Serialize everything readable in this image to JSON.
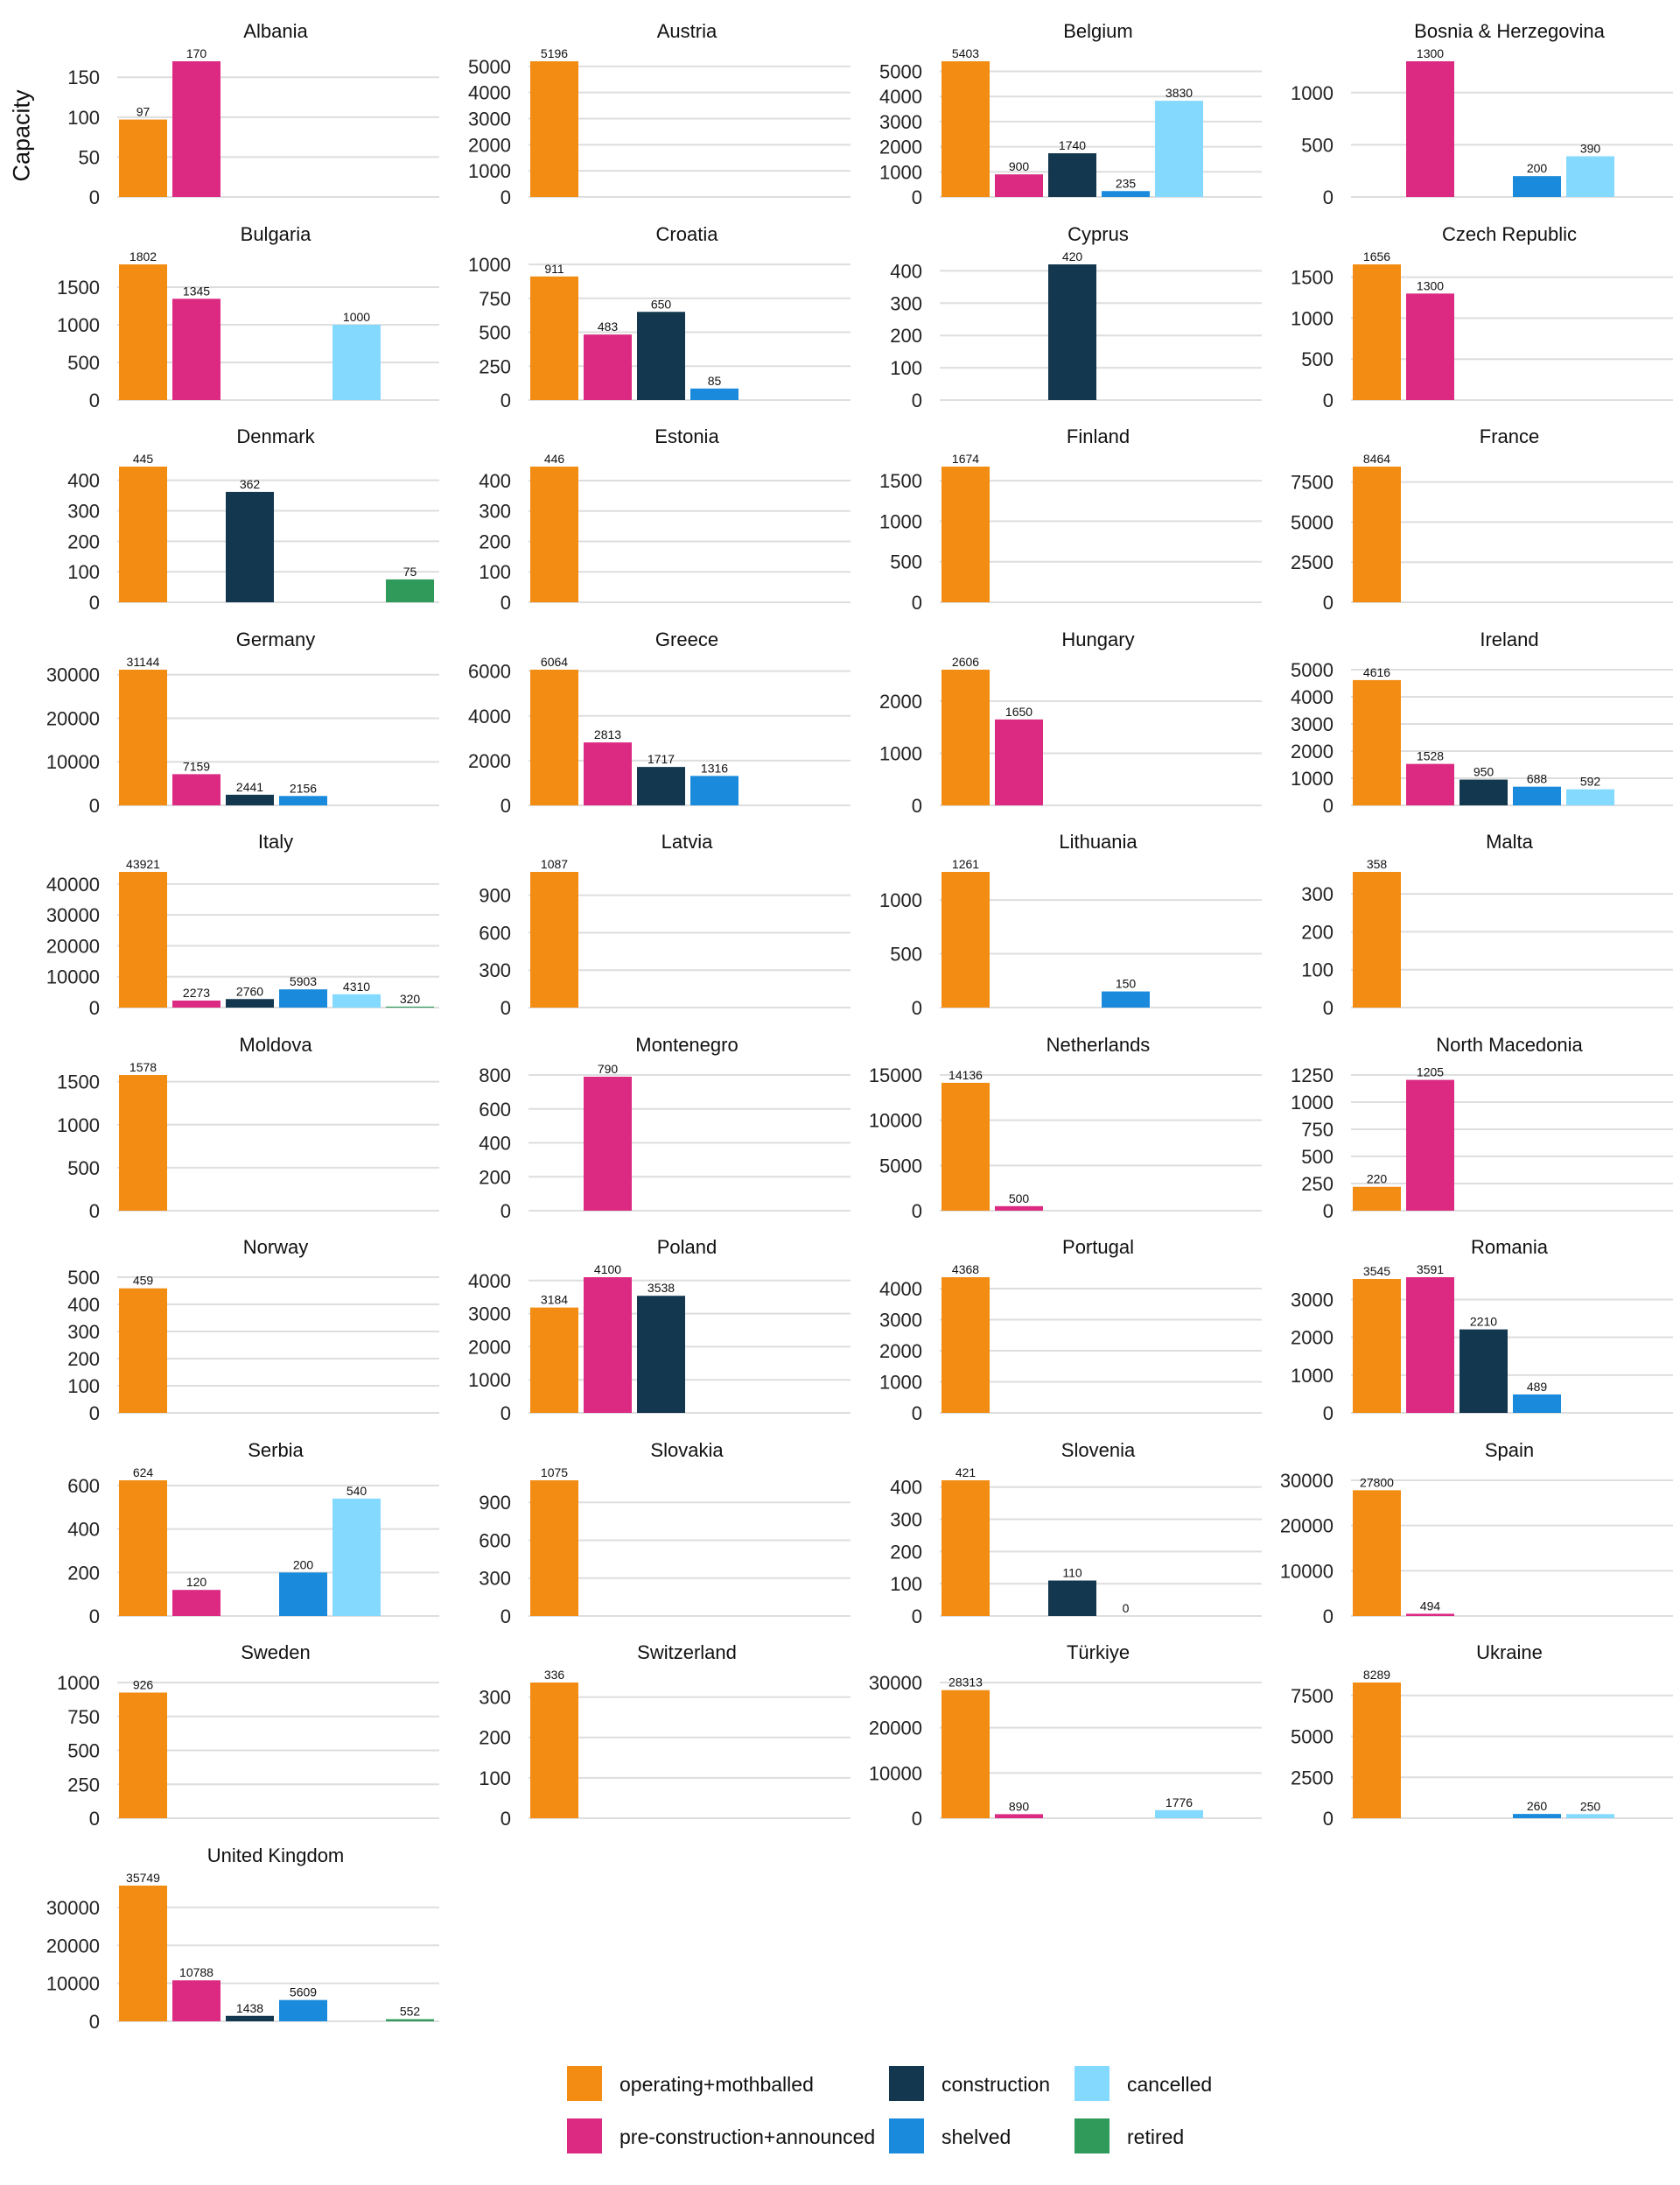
{
  "chart_data": {
    "type": "bar",
    "ylabel": "Capacity",
    "categories": [
      "operating+mothballed",
      "pre-construction+announced",
      "construction",
      "shelved",
      "cancelled",
      "retired"
    ],
    "colors": {
      "operating+mothballed": "#F28C12",
      "pre-construction+announced": "#DC2A82",
      "construction": "#12374F",
      "shelved": "#1A8BDC",
      "cancelled": "#84D9FF",
      "retired": "#2F9A59"
    },
    "legend": {
      "position": "bottom"
    },
    "grid": true,
    "panels": [
      {
        "title": "Albania",
        "yticks": [
          "0",
          "50",
          "100",
          "150"
        ],
        "yticks_values": [
          0,
          50,
          100,
          150
        ],
        "ylim": [
          0,
          170
        ],
        "values": {
          "operating+mothballed": 97,
          "pre-construction+announced": 170
        }
      },
      {
        "title": "Austria",
        "yticks": [
          "0",
          "1000",
          "2000",
          "3000",
          "4000",
          "5000"
        ],
        "yticks_values": [
          0,
          1000,
          2000,
          3000,
          4000,
          5000
        ],
        "ylim": [
          0,
          5196
        ],
        "values": {
          "operating+mothballed": 5196
        }
      },
      {
        "title": "Belgium",
        "yticks": [
          "0",
          "1000",
          "2000",
          "3000",
          "4000",
          "5000"
        ],
        "yticks_values": [
          0,
          1000,
          2000,
          3000,
          4000,
          5000
        ],
        "ylim": [
          0,
          5403
        ],
        "values": {
          "operating+mothballed": 5403,
          "pre-construction+announced": 900,
          "construction": 1740,
          "shelved": 235,
          "cancelled": 3830
        }
      },
      {
        "title": "Bosnia & Herzegovina",
        "yticks": [
          "0",
          "500",
          "1000"
        ],
        "yticks_values": [
          0,
          500,
          1000
        ],
        "ylim": [
          0,
          1300
        ],
        "values": {
          "pre-construction+announced": 1300,
          "shelved": 200,
          "cancelled": 390
        }
      },
      {
        "title": "Bulgaria",
        "yticks": [
          "0",
          "500",
          "1000",
          "1500"
        ],
        "yticks_values": [
          0,
          500,
          1000,
          1500
        ],
        "ylim": [
          0,
          1802
        ],
        "values": {
          "operating+mothballed": 1802,
          "pre-construction+announced": 1345,
          "cancelled": 1000
        }
      },
      {
        "title": "Croatia",
        "yticks": [
          "0",
          "250",
          "500",
          "750",
          "1000"
        ],
        "yticks_values": [
          0,
          250,
          500,
          750,
          1000
        ],
        "ylim": [
          0,
          911
        ],
        "values": {
          "operating+mothballed": 911,
          "pre-construction+announced": 483,
          "construction": 650,
          "shelved": 85
        }
      },
      {
        "title": "Cyprus",
        "yticks": [
          "0",
          "100",
          "200",
          "300",
          "400"
        ],
        "yticks_values": [
          0,
          100,
          200,
          300,
          400
        ],
        "ylim": [
          0,
          420
        ],
        "values": {
          "construction": 420
        }
      },
      {
        "title": "Czech Republic",
        "yticks": [
          "0",
          "500",
          "1000",
          "1500"
        ],
        "yticks_values": [
          0,
          500,
          1000,
          1500
        ],
        "ylim": [
          0,
          1656
        ],
        "values": {
          "operating+mothballed": 1656,
          "pre-construction+announced": 1300
        }
      },
      {
        "title": "Denmark",
        "yticks": [
          "0",
          "100",
          "200",
          "300",
          "400"
        ],
        "yticks_values": [
          0,
          100,
          200,
          300,
          400
        ],
        "ylim": [
          0,
          445
        ],
        "values": {
          "operating+mothballed": 445,
          "construction": 362,
          "retired": 75
        }
      },
      {
        "title": "Estonia",
        "yticks": [
          "0",
          "100",
          "200",
          "300",
          "400"
        ],
        "yticks_values": [
          0,
          100,
          200,
          300,
          400
        ],
        "ylim": [
          0,
          446
        ],
        "values": {
          "operating+mothballed": 446
        }
      },
      {
        "title": "Finland",
        "yticks": [
          "0",
          "500",
          "1000",
          "1500"
        ],
        "yticks_values": [
          0,
          500,
          1000,
          1500
        ],
        "ylim": [
          0,
          1674
        ],
        "values": {
          "operating+mothballed": 1674
        }
      },
      {
        "title": "France",
        "yticks": [
          "0",
          "2500",
          "5000",
          "7500"
        ],
        "yticks_values": [
          0,
          2500,
          5000,
          7500
        ],
        "ylim": [
          0,
          8464
        ],
        "values": {
          "operating+mothballed": 8464
        }
      },
      {
        "title": "Germany",
        "yticks": [
          "0",
          "10000",
          "20000",
          "30000"
        ],
        "yticks_values": [
          0,
          10000,
          20000,
          30000
        ],
        "ylim": [
          0,
          31144
        ],
        "values": {
          "operating+mothballed": 31144,
          "pre-construction+announced": 7159,
          "construction": 2441,
          "shelved": 2156
        }
      },
      {
        "title": "Greece",
        "yticks": [
          "0",
          "2000",
          "4000",
          "6000"
        ],
        "yticks_values": [
          0,
          2000,
          4000,
          6000
        ],
        "ylim": [
          0,
          6064
        ],
        "values": {
          "operating+mothballed": 6064,
          "pre-construction+announced": 2813,
          "construction": 1717,
          "shelved": 1316
        }
      },
      {
        "title": "Hungary",
        "yticks": [
          "0",
          "1000",
          "2000"
        ],
        "yticks_values": [
          0,
          1000,
          2000
        ],
        "ylim": [
          0,
          2606
        ],
        "values": {
          "operating+mothballed": 2606,
          "pre-construction+announced": 1650
        }
      },
      {
        "title": "Ireland",
        "yticks": [
          "0",
          "1000",
          "2000",
          "3000",
          "4000",
          "5000"
        ],
        "yticks_values": [
          0,
          1000,
          2000,
          3000,
          4000,
          5000
        ],
        "ylim": [
          0,
          4616
        ],
        "values": {
          "operating+mothballed": 4616,
          "pre-construction+announced": 1528,
          "construction": 950,
          "shelved": 688,
          "cancelled": 592
        }
      },
      {
        "title": "Italy",
        "yticks": [
          "0",
          "10000",
          "20000",
          "30000",
          "40000"
        ],
        "yticks_values": [
          0,
          10000,
          20000,
          30000,
          40000
        ],
        "ylim": [
          0,
          43921
        ],
        "values": {
          "operating+mothballed": 43921,
          "pre-construction+announced": 2273,
          "construction": 2760,
          "shelved": 5903,
          "cancelled": 4310,
          "retired": 320
        }
      },
      {
        "title": "Latvia",
        "yticks": [
          "0",
          "300",
          "600",
          "900"
        ],
        "yticks_values": [
          0,
          300,
          600,
          900
        ],
        "ylim": [
          0,
          1087
        ],
        "values": {
          "operating+mothballed": 1087
        }
      },
      {
        "title": "Lithuania",
        "yticks": [
          "0",
          "500",
          "1000"
        ],
        "yticks_values": [
          0,
          500,
          1000
        ],
        "ylim": [
          0,
          1261
        ],
        "values": {
          "operating+mothballed": 1261,
          "shelved": 150
        }
      },
      {
        "title": "Malta",
        "yticks": [
          "0",
          "100",
          "200",
          "300"
        ],
        "yticks_values": [
          0,
          100,
          200,
          300
        ],
        "ylim": [
          0,
          358
        ],
        "values": {
          "operating+mothballed": 358
        }
      },
      {
        "title": "Moldova",
        "yticks": [
          "0",
          "500",
          "1000",
          "1500"
        ],
        "yticks_values": [
          0,
          500,
          1000,
          1500
        ],
        "ylim": [
          0,
          1578
        ],
        "values": {
          "operating+mothballed": 1578
        }
      },
      {
        "title": "Montenegro",
        "yticks": [
          "0",
          "200",
          "400",
          "600",
          "800"
        ],
        "yticks_values": [
          0,
          200,
          400,
          600,
          800
        ],
        "ylim": [
          0,
          790
        ],
        "values": {
          "pre-construction+announced": 790
        }
      },
      {
        "title": "Netherlands",
        "yticks": [
          "0",
          "5000",
          "10000",
          "15000"
        ],
        "yticks_values": [
          0,
          5000,
          10000,
          15000
        ],
        "ylim": [
          0,
          14136
        ],
        "values": {
          "operating+mothballed": 14136,
          "pre-construction+announced": 500
        }
      },
      {
        "title": "North Macedonia",
        "yticks": [
          "0",
          "250",
          "500",
          "750",
          "1000",
          "1250"
        ],
        "yticks_values": [
          0,
          250,
          500,
          750,
          1000,
          1250
        ],
        "ylim": [
          0,
          1205
        ],
        "values": {
          "operating+mothballed": 220,
          "pre-construction+announced": 1205
        }
      },
      {
        "title": "Norway",
        "yticks": [
          "0",
          "100",
          "200",
          "300",
          "400",
          "500"
        ],
        "yticks_values": [
          0,
          100,
          200,
          300,
          400,
          500
        ],
        "ylim": [
          0,
          459
        ],
        "values": {
          "operating+mothballed": 459
        }
      },
      {
        "title": "Poland",
        "yticks": [
          "0",
          "1000",
          "2000",
          "3000",
          "4000"
        ],
        "yticks_values": [
          0,
          1000,
          2000,
          3000,
          4000
        ],
        "ylim": [
          0,
          4100
        ],
        "values": {
          "operating+mothballed": 3184,
          "pre-construction+announced": 4100,
          "construction": 3538
        }
      },
      {
        "title": "Portugal",
        "yticks": [
          "0",
          "1000",
          "2000",
          "3000",
          "4000"
        ],
        "yticks_values": [
          0,
          1000,
          2000,
          3000,
          4000
        ],
        "ylim": [
          0,
          4368
        ],
        "values": {
          "operating+mothballed": 4368
        }
      },
      {
        "title": "Romania",
        "yticks": [
          "0",
          "1000",
          "2000",
          "3000"
        ],
        "yticks_values": [
          0,
          1000,
          2000,
          3000
        ],
        "ylim": [
          0,
          3591
        ],
        "values": {
          "operating+mothballed": 3545,
          "pre-construction+announced": 3591,
          "construction": 2210,
          "shelved": 489
        }
      },
      {
        "title": "Serbia",
        "yticks": [
          "0",
          "200",
          "400",
          "600"
        ],
        "yticks_values": [
          0,
          200,
          400,
          600
        ],
        "ylim": [
          0,
          624
        ],
        "values": {
          "operating+mothballed": 624,
          "pre-construction+announced": 120,
          "shelved": 200,
          "cancelled": 540
        }
      },
      {
        "title": "Slovakia",
        "yticks": [
          "0",
          "300",
          "600",
          "900"
        ],
        "yticks_values": [
          0,
          300,
          600,
          900
        ],
        "ylim": [
          0,
          1075
        ],
        "values": {
          "operating+mothballed": 1075
        }
      },
      {
        "title": "Slovenia",
        "yticks": [
          "0",
          "100",
          "200",
          "300",
          "400"
        ],
        "yticks_values": [
          0,
          100,
          200,
          300,
          400
        ],
        "ylim": [
          0,
          421
        ],
        "values": {
          "operating+mothballed": 421,
          "construction": 110,
          "shelved": 0
        }
      },
      {
        "title": "Spain",
        "yticks": [
          "0",
          "10000",
          "20000",
          "30000"
        ],
        "yticks_values": [
          0,
          10000,
          20000,
          30000
        ],
        "ylim": [
          0,
          27800
        ],
        "values": {
          "operating+mothballed": 27800,
          "pre-construction+announced": 494
        }
      },
      {
        "title": "Sweden",
        "yticks": [
          "0",
          "250",
          "500",
          "750",
          "1000"
        ],
        "yticks_values": [
          0,
          250,
          500,
          750,
          1000
        ],
        "ylim": [
          0,
          926
        ],
        "values": {
          "operating+mothballed": 926
        }
      },
      {
        "title": "Switzerland",
        "yticks": [
          "0",
          "100",
          "200",
          "300"
        ],
        "yticks_values": [
          0,
          100,
          200,
          300
        ],
        "ylim": [
          0,
          336
        ],
        "values": {
          "operating+mothballed": 336
        }
      },
      {
        "title": "Türkiye",
        "yticks": [
          "0",
          "10000",
          "20000",
          "30000"
        ],
        "yticks_values": [
          0,
          10000,
          20000,
          30000
        ],
        "ylim": [
          0,
          28313
        ],
        "values": {
          "operating+mothballed": 28313,
          "pre-construction+announced": 890,
          "cancelled": 1776
        }
      },
      {
        "title": "Ukraine",
        "yticks": [
          "0",
          "2500",
          "5000",
          "7500"
        ],
        "yticks_values": [
          0,
          2500,
          5000,
          7500
        ],
        "ylim": [
          0,
          8289
        ],
        "values": {
          "operating+mothballed": 8289,
          "shelved": 260,
          "cancelled": 250
        }
      },
      {
        "title": "United Kingdom",
        "yticks": [
          "0",
          "10000",
          "20000",
          "30000"
        ],
        "yticks_values": [
          0,
          10000,
          20000,
          30000
        ],
        "ylim": [
          0,
          35749
        ],
        "values": {
          "operating+mothballed": 35749,
          "pre-construction+announced": 10788,
          "construction": 1438,
          "shelved": 5609,
          "retired": 552
        }
      }
    ]
  }
}
